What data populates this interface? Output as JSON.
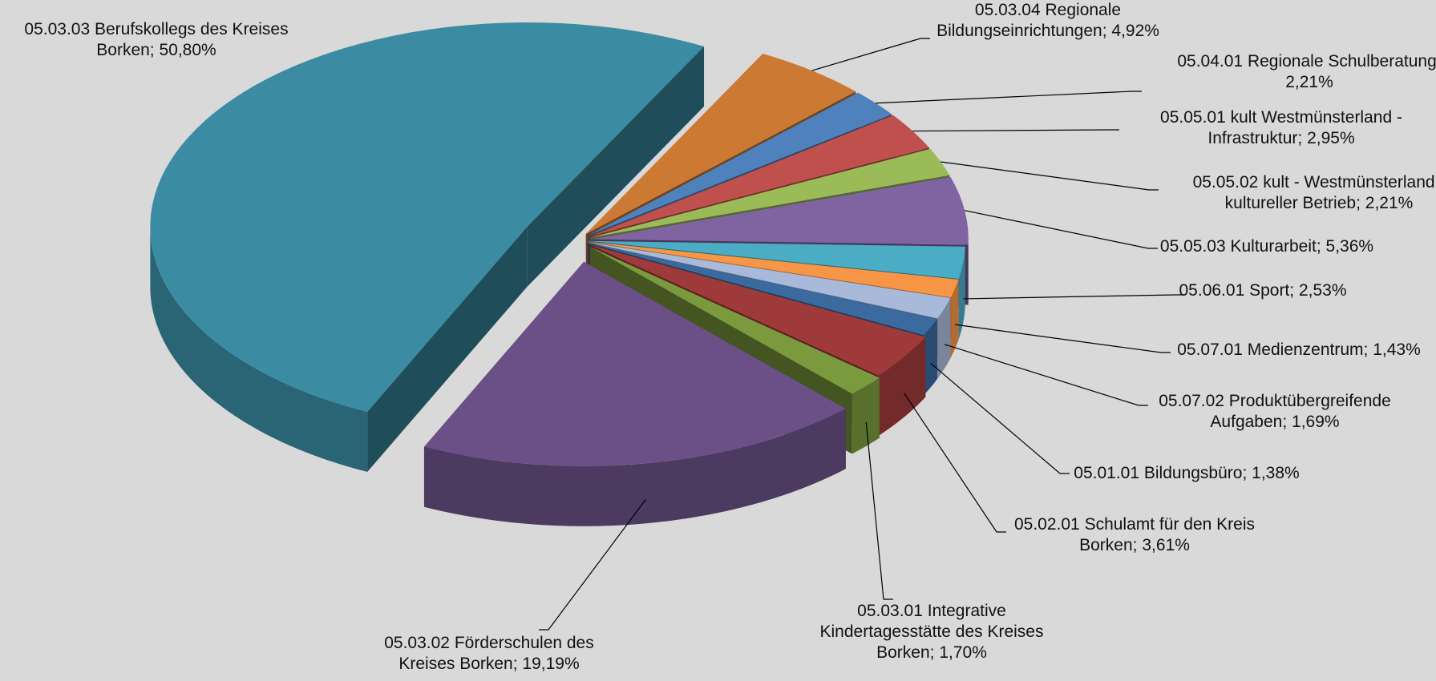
{
  "chart_data": {
    "type": "pie3d",
    "categories": [
      "05.03.04 Regionale Bildungseinrichtungen;",
      "05.04.01 Regionale Schulberatung;",
      "05.05.01 kult Westmünsterland - Infrastruktur;",
      "05.05.02 kult - Westmünsterland - kultureller Betrieb;",
      "05.05.03 Kulturarbeit;",
      "05.06.01 Sport;",
      "05.07.01 Medienzentrum;",
      "05.07.02 Produktübergreifende Aufgaben;",
      "05.01.01 Bildungsbüro;",
      "05.02.01 Schulamt für den Kreis Borken;",
      "05.03.01 Integrative Kindertagesstätte des Kreises Borken;",
      "05.03.02 Förderschulen des Kreises Borken;",
      "05.03.03 Berufskollegs des Kreises Borken;"
    ],
    "values": [
      4.92,
      2.21,
      2.95,
      2.21,
      5.36,
      2.53,
      1.43,
      1.69,
      1.38,
      3.61,
      1.7,
      19.19,
      50.8
    ],
    "value_labels": [
      "4,92%",
      "2,21%",
      "2,95%",
      "2,21%",
      "5,36%",
      "2,53%",
      "1,43%",
      "1,69%",
      "1,38%",
      "3,61%",
      "1,70%",
      "19,19%",
      "50,80%"
    ],
    "colors": [
      "#cc7a33",
      "#4f81bd",
      "#c0504d",
      "#9bbb59",
      "#8064a2",
      "#4bacc6",
      "#f79646",
      "#a9b9d9",
      "#3a6a9e",
      "#9e3b3a",
      "#7b9a3e",
      "#6a5087",
      "#3b8ca3"
    ]
  }
}
